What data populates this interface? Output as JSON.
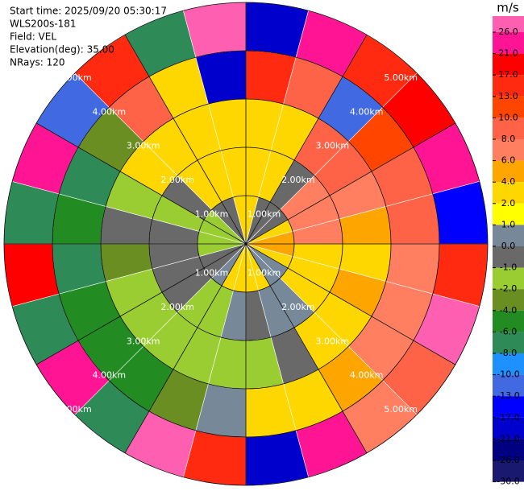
{
  "chart_data": {
    "type": "ppi",
    "info": [
      "Start time: 2025/09/20 05:30:17",
      "WLS200s-181",
      "Field: VEL",
      "Elevation(deg): 35.00",
      "NRays: 120"
    ],
    "azimuths": [
      0,
      15,
      30,
      45,
      60,
      75,
      90,
      105,
      120,
      135,
      150,
      165,
      180,
      195,
      210,
      225,
      240,
      255,
      270,
      285,
      300,
      315,
      330,
      345
    ],
    "ranges": [
      0,
      1,
      2,
      3,
      4,
      5
    ],
    "values": [
      [
        3,
        3,
        3,
        13,
        -21
      ],
      [
        -0.5,
        3,
        3,
        8,
        21
      ],
      [
        -0.5,
        -0.5,
        8,
        -13,
        13
      ],
      [
        -0.5,
        7,
        8,
        10,
        17
      ],
      [
        3,
        7,
        7,
        9,
        21
      ],
      [
        5,
        7,
        5,
        9,
        -17
      ],
      [
        5,
        3,
        3,
        7,
        13
      ],
      [
        3,
        3,
        5,
        7,
        26
      ],
      [
        0.5,
        3,
        3,
        7,
        9
      ],
      [
        0.5,
        0.5,
        3,
        5,
        7
      ],
      [
        3,
        0.5,
        -0.5,
        3,
        21
      ],
      [
        3,
        -0.5,
        -1.5,
        3,
        -21
      ],
      [
        3,
        0.5,
        -1.5,
        0.5,
        13
      ],
      [
        3,
        -1.5,
        -1.5,
        -3,
        26
      ],
      [
        0.5,
        -1.5,
        -1.5,
        -5,
        -7
      ],
      [
        -0.5,
        -0.5,
        -1.5,
        -5,
        21
      ],
      [
        -0.5,
        -0.5,
        -1.5,
        -5,
        -7
      ],
      [
        -1.5,
        -0.5,
        -3,
        -7,
        17
      ],
      [
        -1.5,
        -0.5,
        -0.5,
        -5,
        -7
      ],
      [
        -1.5,
        -1.5,
        -1.5,
        -7,
        21
      ],
      [
        -1.5,
        -0.5,
        3,
        -3,
        -13
      ],
      [
        -0.5,
        3,
        3,
        9,
        13
      ],
      [
        -0.5,
        3,
        3,
        3,
        -7
      ],
      [
        3,
        3,
        3,
        -21,
        26
      ]
    ],
    "rlim": [
      0,
      5
    ],
    "rticks": [
      {
        "value": 1,
        "label": "1.00km"
      },
      {
        "value": 2,
        "label": "2.00km"
      },
      {
        "value": 3,
        "label": "3.00km"
      },
      {
        "value": 4,
        "label": "4.00km"
      },
      {
        "value": 5,
        "label": "5.00km"
      }
    ],
    "colorbar": {
      "unit": "m/s",
      "ticks": [
        {
          "value": 26,
          "label": "26.0"
        },
        {
          "value": 21,
          "label": "21.0"
        },
        {
          "value": 17,
          "label": "17.0"
        },
        {
          "value": 13,
          "label": "13.0"
        },
        {
          "value": 10,
          "label": "10.0"
        },
        {
          "value": 8,
          "label": "8.0"
        },
        {
          "value": 6,
          "label": "6.0"
        },
        {
          "value": 4,
          "label": "4.0"
        },
        {
          "value": 2,
          "label": "2.0"
        },
        {
          "value": 1,
          "label": "1.0"
        },
        {
          "value": 0,
          "label": "0.0"
        },
        {
          "value": -1,
          "label": "-1.0"
        },
        {
          "value": -2,
          "label": "-2.0"
        },
        {
          "value": -4,
          "label": "-4.0"
        },
        {
          "value": -6,
          "label": "-6.0"
        },
        {
          "value": -8,
          "label": "-8.0"
        },
        {
          "value": -10,
          "label": "-10.0"
        },
        {
          "value": -13,
          "label": "-13.0"
        },
        {
          "value": -17,
          "label": "-17.0"
        },
        {
          "value": -21,
          "label": "-21.0"
        },
        {
          "value": -26,
          "label": "-26.0"
        },
        {
          "value": -30,
          "label": "-30.0"
        }
      ],
      "colors": [
        "#ff5fb0",
        "#ff1493",
        "#ff0000",
        "#ff2a10",
        "#ff4500",
        "#ff6347",
        "#ff7f60",
        "#ffa500",
        "#ffd700",
        "#ffff00",
        "#778899",
        "#696969",
        "#9acd32",
        "#6b8e23",
        "#228b22",
        "#2e8b57",
        "#1e90ff",
        "#4169e1",
        "#0000ff",
        "#0000cd",
        "#000080",
        "#191970"
      ]
    }
  }
}
